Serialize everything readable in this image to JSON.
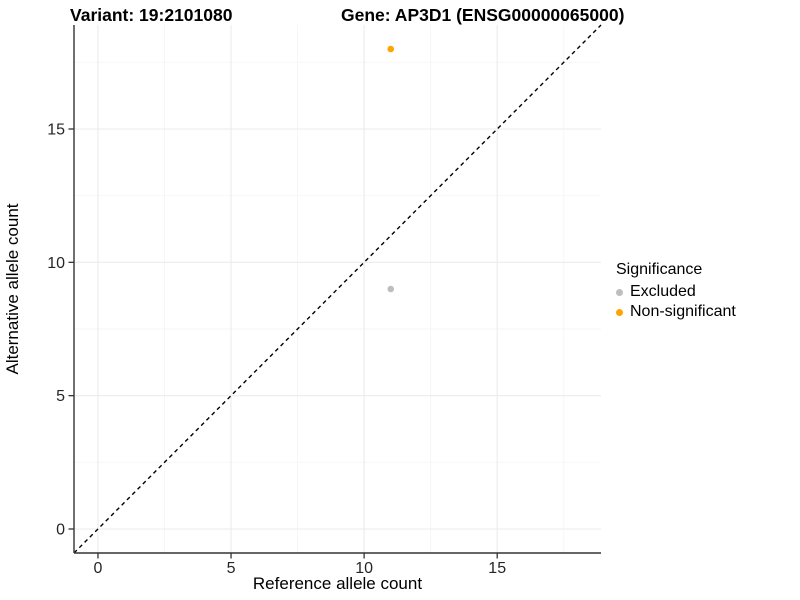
{
  "titles": {
    "left": "Variant: 19:2101080",
    "right": "Gene: AP3D1 (ENSG00000065000)"
  },
  "chart_data": {
    "type": "scatter",
    "xlabel": "Reference allele count",
    "ylabel": "Alternative allele count",
    "xlim": [
      -0.9,
      18.9
    ],
    "ylim": [
      -0.9,
      18.9
    ],
    "x_ticks": [
      0,
      5,
      10,
      15
    ],
    "y_ticks": [
      0,
      5,
      10,
      15
    ],
    "x_minor_ticks": [
      2.5,
      7.5,
      12.5,
      17.5
    ],
    "y_minor_ticks": [
      2.5,
      7.5,
      12.5,
      17.5
    ],
    "grid": "major+minor",
    "identity_line": {
      "style": "dashed",
      "color": "#000000",
      "x1": -0.9,
      "y1": -0.9,
      "x2": 18.9,
      "y2": 18.9
    },
    "series": [
      {
        "name": "Excluded",
        "color": "#BEBEBE",
        "points": [
          [
            11,
            9
          ]
        ]
      },
      {
        "name": "Non-significant",
        "color": "#FFA500",
        "points": [
          [
            11,
            18
          ]
        ]
      }
    ],
    "legend": {
      "title": "Significance",
      "position": "right"
    }
  },
  "style_colors": {
    "background": "#FFFFFF",
    "grid_major": "#EBEBEB",
    "grid_minor": "#F5F5F5",
    "axis_line": "#333333",
    "tick_label": "#262626"
  }
}
